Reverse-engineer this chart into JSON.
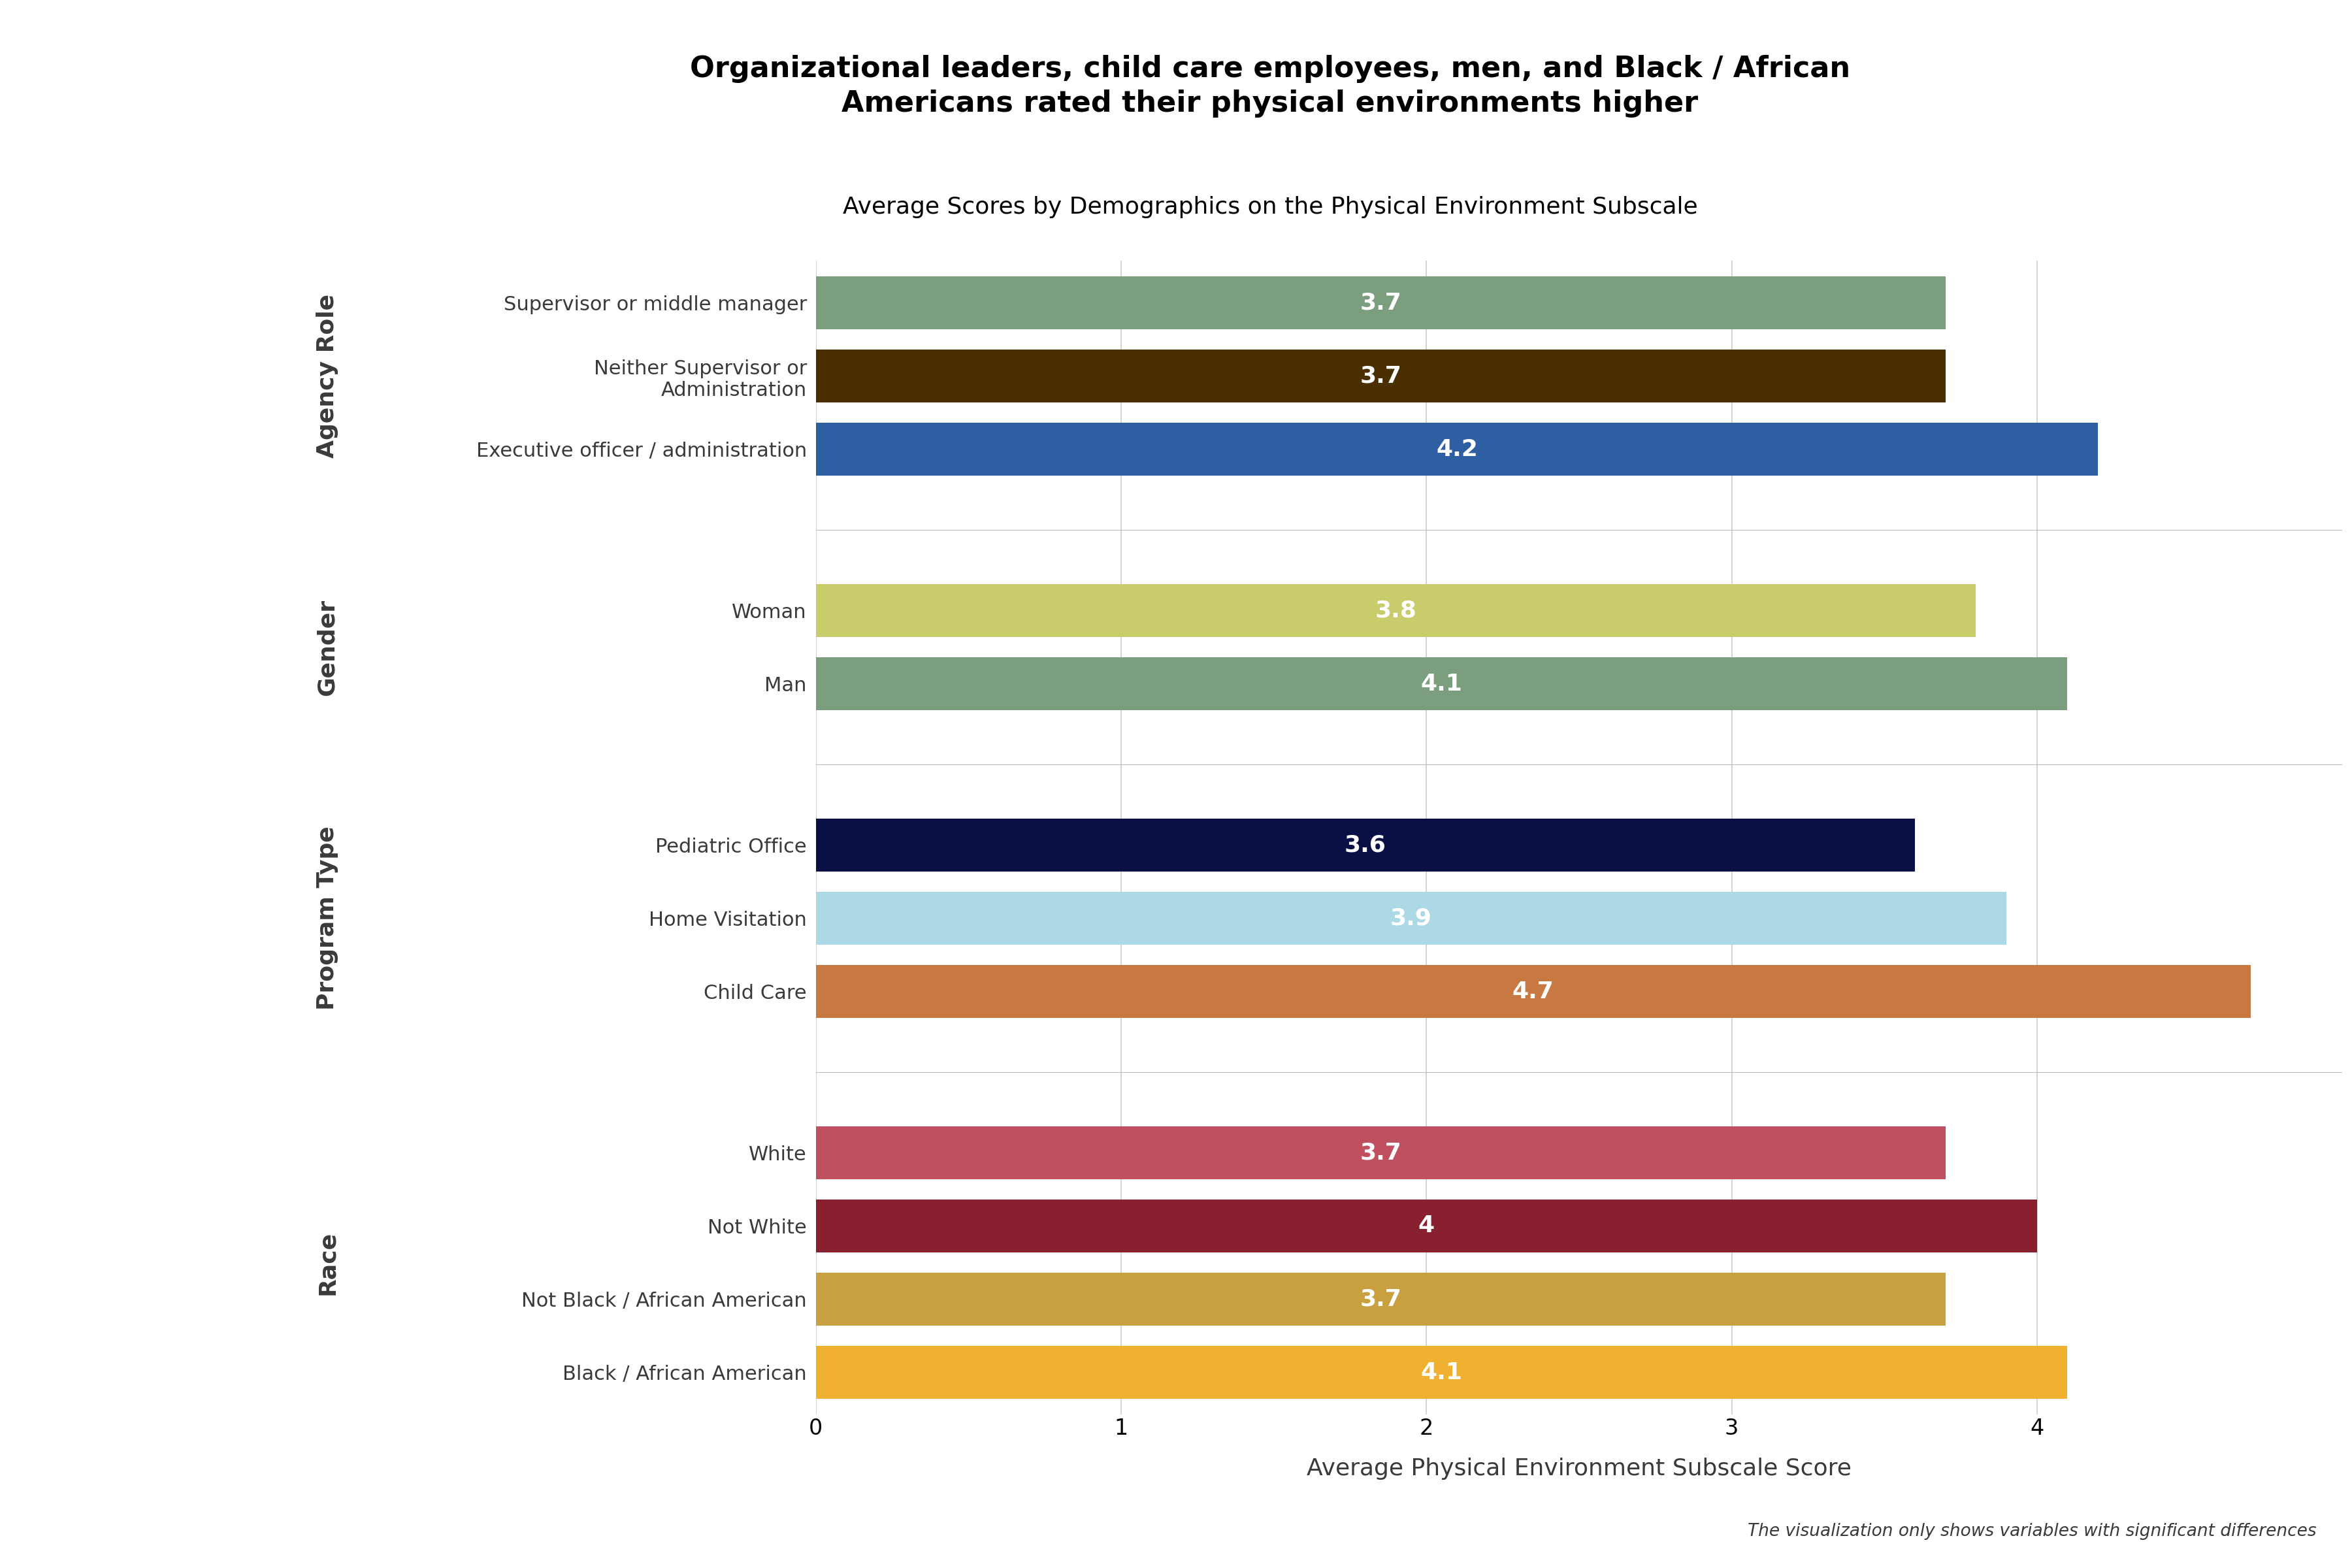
{
  "title_main": "Organizational leaders, child care employees, men, and Black / African\nAmericans rated their physical environments higher",
  "title_sub": "Average Scores by Demographics on the Physical Environment Subscale",
  "xlabel": "Average Physical Environment Subscale Score",
  "footnote": "The visualization only shows variables with significant differences",
  "xlim": [
    0,
    5
  ],
  "xticks": [
    0,
    1,
    2,
    3,
    4
  ],
  "categories": [
    "Supervisor or middle manager",
    "Neither Supervisor or\nAdministration",
    "Executive officer / administration",
    "Woman",
    "Man",
    "Pediatric Office",
    "Home Visitation",
    "Child Care",
    "White",
    "Not White",
    "Not Black / African American",
    "Black / African American"
  ],
  "values": [
    3.7,
    3.7,
    4.2,
    3.8,
    4.1,
    3.6,
    3.9,
    4.7,
    3.7,
    4.0,
    3.7,
    4.1
  ],
  "colors": [
    "#7a9e7e",
    "#4a3000",
    "#2e5fa3",
    "#c8cc6a",
    "#7a9e7e",
    "#0a1045",
    "#add8e6",
    "#c87941",
    "#c05060",
    "#882030",
    "#c8a040",
    "#f0b030"
  ],
  "value_labels": [
    "3.7",
    "3.7",
    "4.2",
    "3.8",
    "4.1",
    "3.6",
    "3.9",
    "4.7",
    "3.7",
    "4",
    "3.7",
    "4.1"
  ],
  "background_color": "#ffffff",
  "grid_color": "#cccccc",
  "text_color": "#3a3a3a",
  "group_info": [
    {
      "label": "Agency Role",
      "bar_indices": [
        0,
        1,
        2
      ]
    },
    {
      "label": "Gender",
      "bar_indices": [
        3,
        4
      ]
    },
    {
      "label": "Program Type",
      "bar_indices": [
        5,
        6,
        7
      ]
    },
    {
      "label": "Race",
      "bar_indices": [
        8,
        9,
        10,
        11
      ]
    }
  ]
}
